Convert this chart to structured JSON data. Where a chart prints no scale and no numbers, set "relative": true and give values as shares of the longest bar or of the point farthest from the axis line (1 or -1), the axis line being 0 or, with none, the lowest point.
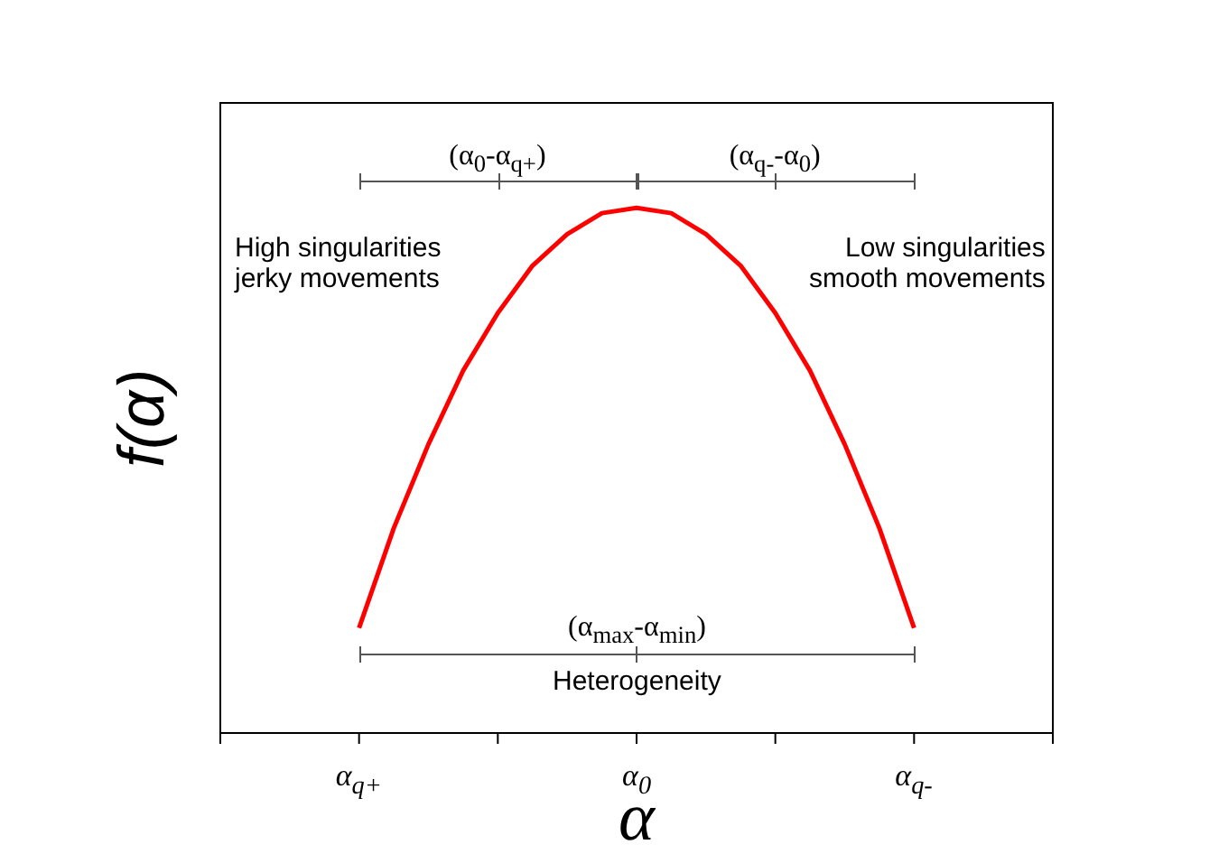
{
  "chart_data": {
    "type": "line",
    "relative": true,
    "xlabel": "α",
    "ylabel": "f(α)",
    "categories": [
      null,
      null,
      null,
      null,
      "α$_{q+}$",
      null,
      null,
      null,
      null,
      null,
      null,
      null,
      "α$_{0}$",
      null,
      null,
      null,
      null,
      null,
      null,
      null,
      "α$_{q-}$",
      null,
      null,
      null,
      null
    ],
    "series": [
      {
        "color": "#ff0000",
        "values": [
          null,
          null,
          null,
          null,
          0.2,
          0.39,
          0.55,
          0.69,
          0.8,
          0.89,
          0.95,
          0.99,
          1,
          0.99,
          0.95,
          0.89,
          0.8,
          0.69,
          0.55,
          0.39,
          0.2,
          null,
          null,
          null,
          null
        ]
      }
    ],
    "annotations": [
      "(α$_{0}$-α$_{q+}$)",
      "(α$_{q-}$-α$_{0}$)",
      "(α$_{max}$-α$_{min}$)",
      "High singularities\njerky movements",
      "Low singularities\nsmooth movements",
      "Heterogeneity"
    ],
    "grid": false,
    "legend": false
  }
}
